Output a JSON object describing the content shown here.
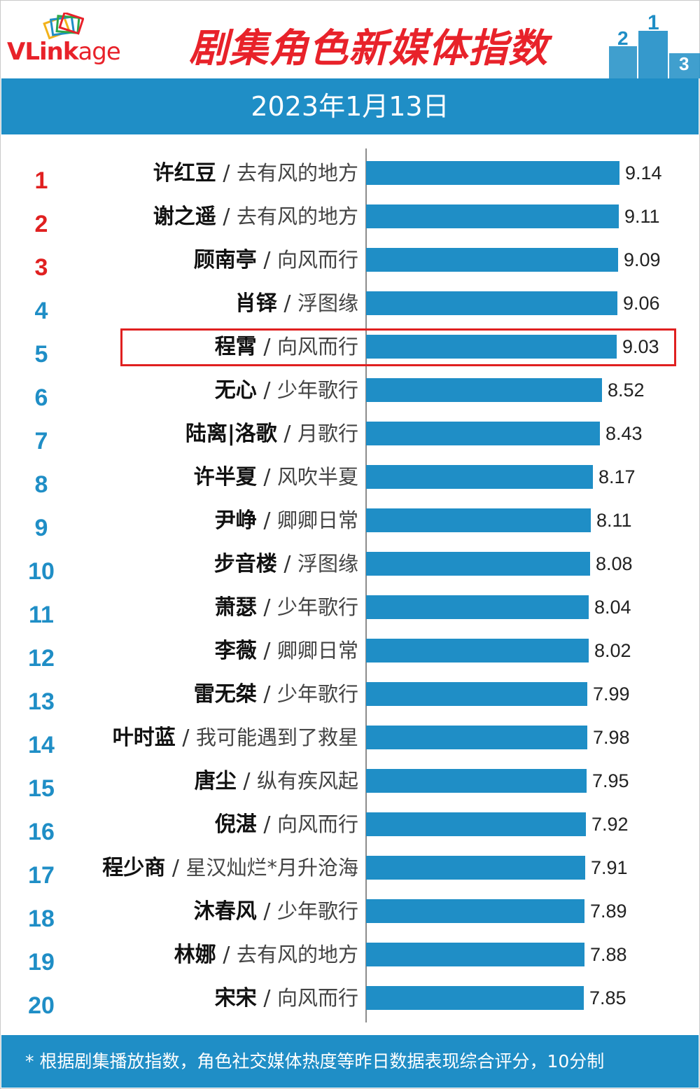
{
  "brand": {
    "logo_text_v": "V",
    "logo_text_link": "Link",
    "logo_text_age": "age"
  },
  "header": {
    "title": "剧集角色新媒体指数",
    "date": "2023年1月13日"
  },
  "footer": {
    "note": "* 根据剧集播放指数，角色社交媒体热度等昨日数据表现综合评分，10分制"
  },
  "highlight_rank": 5,
  "colors": {
    "bar": "#1f8ec6",
    "top_rank": "#e02020",
    "rank": "#1f8ec6",
    "highlight": "#e02020",
    "title": "#e8222a"
  },
  "chart_data": {
    "type": "bar",
    "orientation": "horizontal",
    "title": "剧集角色新媒体指数",
    "xlim": [
      0,
      10
    ],
    "grid": false,
    "rows": [
      {
        "rank": "1",
        "name": "许红豆",
        "show": "去有风的地方",
        "value": 9.14
      },
      {
        "rank": "2",
        "name": "谢之遥",
        "show": "去有风的地方",
        "value": 9.11
      },
      {
        "rank": "3",
        "name": "顾南亭",
        "show": "向风而行",
        "value": 9.09
      },
      {
        "rank": "4",
        "name": "肖铎",
        "show": "浮图缘",
        "value": 9.06
      },
      {
        "rank": "5",
        "name": "程霄",
        "show": "向风而行",
        "value": 9.03
      },
      {
        "rank": "6",
        "name": "无心",
        "show": "少年歌行",
        "value": 8.52
      },
      {
        "rank": "7",
        "name": "陆离|洛歌",
        "show": "月歌行",
        "value": 8.43
      },
      {
        "rank": "8",
        "name": "许半夏",
        "show": "风吹半夏",
        "value": 8.17
      },
      {
        "rank": "9",
        "name": "尹峥",
        "show": "卿卿日常",
        "value": 8.11
      },
      {
        "rank": "10",
        "name": "步音楼",
        "show": "浮图缘",
        "value": 8.08
      },
      {
        "rank": "11",
        "name": "萧瑟",
        "show": "少年歌行",
        "value": 8.04
      },
      {
        "rank": "12",
        "name": "李薇",
        "show": "卿卿日常",
        "value": 8.02
      },
      {
        "rank": "13",
        "name": "雷无桀",
        "show": "少年歌行",
        "value": 7.99
      },
      {
        "rank": "14",
        "name": "叶时蓝",
        "show": "我可能遇到了救星",
        "value": 7.98
      },
      {
        "rank": "15",
        "name": "唐尘",
        "show": "纵有疾风起",
        "value": 7.95
      },
      {
        "rank": "16",
        "name": "倪湛",
        "show": "向风而行",
        "value": 7.92
      },
      {
        "rank": "17",
        "name": "程少商",
        "show": "星汉灿烂*月升沧海",
        "value": 7.91
      },
      {
        "rank": "18",
        "name": "沐春风",
        "show": "少年歌行",
        "value": 7.89
      },
      {
        "rank": "19",
        "name": "林娜",
        "show": "去有风的地方",
        "value": 7.88
      },
      {
        "rank": "20",
        "name": "宋宋",
        "show": "向风而行",
        "value": 7.85
      }
    ]
  }
}
